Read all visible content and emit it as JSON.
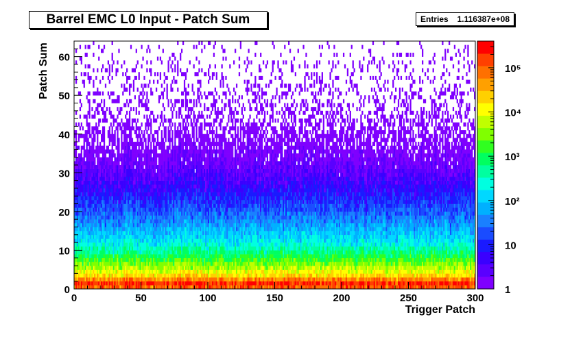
{
  "chart_data": {
    "type": "heatmap",
    "title": "Barrel EMC L0 Input - Patch Sum",
    "xlabel": "Trigger Patch",
    "ylabel": "Patch Sum",
    "xlim": [
      0,
      300
    ],
    "ylim": [
      0,
      64
    ],
    "x_ticks": [
      0,
      50,
      100,
      150,
      200,
      250,
      300
    ],
    "y_ticks": [
      0,
      10,
      20,
      30,
      40,
      50,
      60
    ],
    "z_scale": "log",
    "z_range": [
      1,
      400000
    ],
    "z_ticks": [
      {
        "value": 1,
        "label": "1"
      },
      {
        "value": 10,
        "label": "10"
      },
      {
        "value": 100,
        "label": "10²"
      },
      {
        "value": 1000,
        "label": "10³"
      },
      {
        "value": 10000,
        "label": "10⁴"
      },
      {
        "value": 100000,
        "label": "10⁵"
      }
    ],
    "palette": [
      "#7f00ff",
      "#5a00ff",
      "#3a00ff",
      "#1a1aff",
      "#1a4cff",
      "#1a80ff",
      "#00b0ff",
      "#00d8ff",
      "#00ffe0",
      "#00ffa0",
      "#00ff60",
      "#30ff20",
      "#80ff00",
      "#c0ff00",
      "#ffff00",
      "#ffd000",
      "#ffa000",
      "#ff7000",
      "#ff4000",
      "#ff0000"
    ],
    "stats": {
      "label": "Entries",
      "value": "1.116387e+08"
    },
    "distribution_profile": [
      {
        "patch_sum": 0,
        "counts": 60000
      },
      {
        "patch_sum": 1,
        "counts": 300000
      },
      {
        "patch_sum": 2,
        "counts": 150000
      },
      {
        "patch_sum": 3,
        "counts": 30000
      },
      {
        "patch_sum": 5,
        "counts": 8000
      },
      {
        "patch_sum": 8,
        "counts": 1500
      },
      {
        "patch_sum": 12,
        "counts": 200
      },
      {
        "patch_sum": 18,
        "counts": 40
      },
      {
        "patch_sum": 25,
        "counts": 8
      },
      {
        "patch_sum": 32,
        "counts": 2
      },
      {
        "patch_sum": 45,
        "counts": 0.4
      },
      {
        "patch_sum": 63,
        "counts": 0.1
      }
    ],
    "grid": false,
    "legend": "right (color scale)"
  }
}
